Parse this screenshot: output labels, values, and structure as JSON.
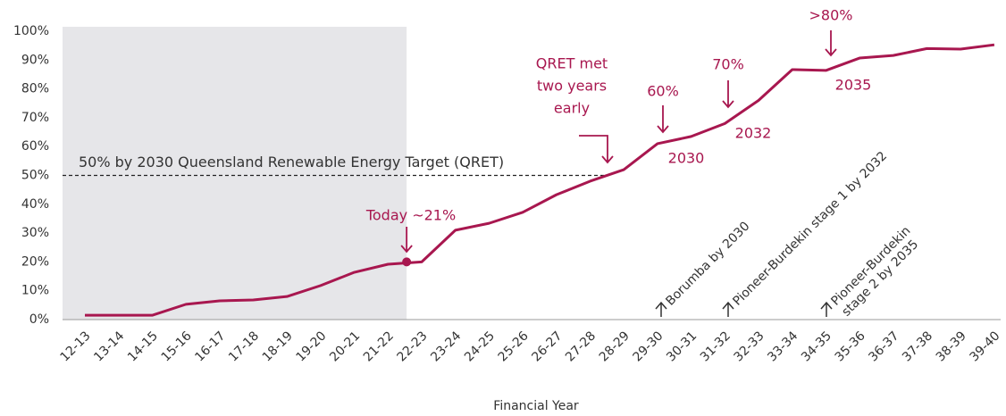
{
  "chart_data": {
    "type": "line",
    "x_label": "Financial Year",
    "categories": [
      "12-13",
      "13-14",
      "14-15",
      "15-16",
      "16-17",
      "17-18",
      "18-19",
      "19-20",
      "20-21",
      "21-22",
      "22-23",
      "23-24",
      "24-25",
      "25-26",
      "26-27",
      "27-28",
      "28-29",
      "29-30",
      "30-31",
      "31-32",
      "32-33",
      "33-34",
      "34-35",
      "35-36",
      "36-37",
      "37-38",
      "38-39",
      "39-40"
    ],
    "values": [
      1.5,
      1.5,
      1.5,
      5.3,
      6.5,
      6.8,
      8,
      11.8,
      16.4,
      19.2,
      20,
      31,
      33.4,
      37.2,
      43.3,
      48,
      52,
      61,
      63.5,
      68,
      76,
      86.7,
      86.4,
      90.7,
      91.6,
      94,
      93.8,
      95.3
    ],
    "color": "#a8174f",
    "ylim": [
      0,
      100
    ],
    "yticks": [
      {
        "value": 0,
        "label": "0%"
      },
      {
        "value": 10,
        "label": "10%"
      },
      {
        "value": 20,
        "label": "20%"
      },
      {
        "value": 30,
        "label": "30%"
      },
      {
        "value": 40,
        "label": "40%"
      },
      {
        "value": 50,
        "label": "50%"
      },
      {
        "value": 60,
        "label": "60%"
      },
      {
        "value": 70,
        "label": "70%"
      },
      {
        "value": 80,
        "label": "80%"
      },
      {
        "value": 90,
        "label": "90%"
      },
      {
        "value": 100,
        "label": "100%"
      }
    ],
    "reference": {
      "value": 50,
      "label": "50% by 2030 Queensland Renewable Energy Target (QRET)"
    },
    "today": {
      "value": 20,
      "label": "Today ~21%"
    },
    "qret_note": [
      "QRET met",
      "two years",
      "early"
    ],
    "milestones": [
      {
        "label": "60%",
        "year": "2030"
      },
      {
        "label": "70%",
        "year": "2032"
      },
      {
        "label": ">80%",
        "year": "2035"
      }
    ],
    "hydro": [
      [
        "Borumba by 2030"
      ],
      [
        "Pioneer-Burdekin stage 1 by 2032"
      ],
      [
        "Pioneer-Burdekin",
        "stage 2 by 2035"
      ]
    ]
  }
}
